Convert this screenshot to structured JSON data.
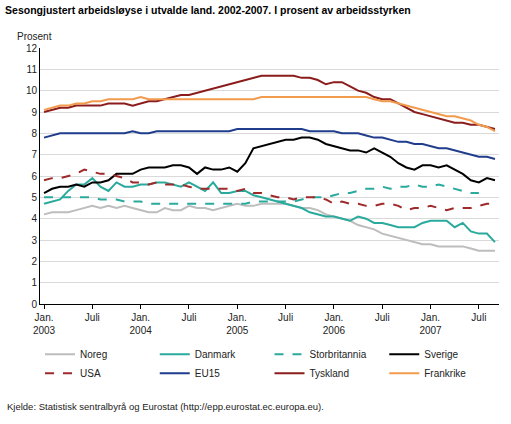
{
  "chart_data": {
    "type": "line",
    "title": "Sesongjustert arbeidsløyse i utvalde land. 2002-2007. I prosent av arbeidsstyrken",
    "y_label": "Prosent",
    "source": "Kjelde: Statistisk sentralbyrå og Eurostat (http://epp.eurostat.ec.europa.eu).",
    "categories": [
      "Jan. 2003",
      null,
      null,
      null,
      null,
      null,
      "Juli",
      null,
      null,
      null,
      null,
      null,
      "Jan. 2004",
      null,
      null,
      null,
      null,
      null,
      "Juli",
      null,
      null,
      null,
      null,
      null,
      "Jan. 2005",
      null,
      null,
      null,
      null,
      null,
      "Juli",
      null,
      null,
      null,
      null,
      null,
      "Jan. 2006",
      null,
      null,
      null,
      null,
      null,
      "Juli",
      null,
      null,
      null,
      null,
      null,
      "Jan. 2007",
      null,
      null,
      null,
      null,
      null,
      "Juli",
      null,
      null
    ],
    "ylim": [
      0,
      12
    ],
    "yticks": [
      0,
      1,
      2,
      3,
      4,
      5,
      6,
      7,
      8,
      9,
      10,
      11,
      12
    ],
    "grid": true,
    "legend": "bottom",
    "series": [
      {
        "name": "Noreg",
        "color": "#bdbdbd",
        "line_style": "solid",
        "values": [
          4.2,
          4.3,
          4.3,
          4.3,
          4.4,
          4.5,
          4.6,
          4.5,
          4.6,
          4.5,
          4.6,
          4.5,
          4.4,
          4.3,
          4.3,
          4.5,
          4.4,
          4.4,
          4.6,
          4.5,
          4.5,
          4.4,
          4.5,
          4.6,
          4.7,
          4.6,
          4.6,
          4.7,
          4.7,
          4.7,
          4.7,
          4.6,
          4.5,
          4.5,
          4.4,
          4.2,
          4.1,
          4.0,
          3.9,
          3.7,
          3.6,
          3.5,
          3.3,
          3.2,
          3.1,
          3.0,
          2.9,
          2.8,
          2.8,
          2.7,
          2.7,
          2.7,
          2.7,
          2.6,
          2.5,
          2.5,
          2.5
        ]
      },
      {
        "name": "Danmark",
        "color": "#2aaa9c",
        "line_style": "solid",
        "values": [
          4.7,
          4.8,
          4.9,
          5.3,
          5.6,
          5.6,
          5.9,
          5.5,
          5.3,
          5.7,
          5.5,
          5.5,
          5.6,
          5.6,
          5.7,
          5.7,
          5.6,
          5.5,
          5.7,
          5.5,
          5.3,
          5.7,
          5.2,
          5.2,
          5.3,
          5.3,
          5.1,
          5.0,
          4.9,
          4.8,
          4.7,
          4.6,
          4.5,
          4.3,
          4.2,
          4.1,
          4.1,
          4.0,
          3.9,
          4.1,
          4.0,
          3.8,
          3.8,
          3.7,
          3.6,
          3.6,
          3.6,
          3.8,
          3.9,
          3.9,
          3.9,
          3.6,
          3.8,
          3.4,
          3.3,
          3.3,
          2.9
        ]
      },
      {
        "name": "Storbritannia",
        "color": "#2aaa9c",
        "line_style": "dashed",
        "values": [
          5.0,
          5.0,
          5.0,
          5.0,
          5.0,
          5.0,
          5.0,
          4.9,
          4.9,
          4.9,
          4.8,
          4.8,
          4.8,
          4.7,
          4.7,
          4.7,
          4.7,
          4.7,
          4.7,
          4.7,
          4.7,
          4.7,
          4.7,
          4.7,
          4.7,
          4.7,
          4.8,
          4.8,
          4.8,
          4.8,
          4.8,
          4.8,
          4.9,
          5.0,
          5.0,
          5.0,
          5.1,
          5.2,
          5.2,
          5.3,
          5.4,
          5.4,
          5.5,
          5.4,
          5.5,
          5.5,
          5.6,
          5.5,
          5.5,
          5.6,
          5.5,
          5.4,
          5.3,
          5.2,
          5.2,
          null,
          null
        ]
      },
      {
        "name": "Sverige",
        "color": "#000000",
        "line_style": "solid",
        "values": [
          5.2,
          5.4,
          5.5,
          5.5,
          5.6,
          5.5,
          5.7,
          5.7,
          5.8,
          6.1,
          6.1,
          6.1,
          6.3,
          6.4,
          6.4,
          6.4,
          6.5,
          6.5,
          6.4,
          6.1,
          6.4,
          6.3,
          6.3,
          6.4,
          6.2,
          6.6,
          7.3,
          7.4,
          7.5,
          7.6,
          7.7,
          7.7,
          7.8,
          7.8,
          7.7,
          7.5,
          7.4,
          7.3,
          7.2,
          7.2,
          7.1,
          7.3,
          7.1,
          6.9,
          6.6,
          6.4,
          6.3,
          6.5,
          6.5,
          6.4,
          6.5,
          6.3,
          6.1,
          5.8,
          5.7,
          5.9,
          5.8
        ]
      },
      {
        "name": "USA",
        "color": "#9e2a2b",
        "line_style": "dashed",
        "values": [
          5.8,
          5.9,
          5.9,
          6.0,
          6.1,
          6.3,
          6.2,
          6.1,
          6.1,
          6.0,
          5.9,
          5.7,
          5.7,
          5.6,
          5.7,
          5.6,
          5.6,
          5.6,
          5.5,
          5.4,
          5.4,
          5.4,
          5.4,
          5.4,
          5.3,
          5.4,
          5.2,
          5.2,
          5.1,
          5.0,
          5.0,
          4.9,
          5.0,
          5.0,
          5.0,
          4.9,
          4.7,
          4.8,
          4.7,
          4.7,
          4.6,
          4.6,
          4.7,
          4.7,
          4.6,
          4.4,
          4.5,
          4.5,
          4.6,
          4.5,
          4.4,
          4.5,
          4.5,
          4.5,
          4.6,
          4.7,
          4.7
        ]
      },
      {
        "name": "EU15",
        "color": "#1f3d8c",
        "line_style": "solid",
        "values": [
          7.8,
          7.9,
          8.0,
          8.0,
          8.0,
          8.0,
          8.0,
          8.0,
          8.0,
          8.0,
          8.0,
          8.1,
          8.0,
          8.0,
          8.1,
          8.1,
          8.1,
          8.1,
          8.1,
          8.1,
          8.1,
          8.1,
          8.1,
          8.1,
          8.2,
          8.2,
          8.2,
          8.2,
          8.2,
          8.2,
          8.2,
          8.2,
          8.2,
          8.1,
          8.1,
          8.1,
          8.1,
          8.0,
          8.0,
          8.0,
          7.9,
          7.8,
          7.8,
          7.7,
          7.6,
          7.6,
          7.5,
          7.5,
          7.4,
          7.3,
          7.3,
          7.2,
          7.1,
          7.0,
          6.9,
          6.9,
          6.8
        ]
      },
      {
        "name": "Tyskland",
        "color": "#8b1c1c",
        "line_style": "solid",
        "values": [
          9.0,
          9.1,
          9.2,
          9.2,
          9.3,
          9.3,
          9.3,
          9.3,
          9.4,
          9.4,
          9.4,
          9.3,
          9.4,
          9.5,
          9.5,
          9.6,
          9.7,
          9.8,
          9.8,
          9.9,
          10.0,
          10.1,
          10.2,
          10.3,
          10.4,
          10.5,
          10.6,
          10.7,
          10.7,
          10.7,
          10.7,
          10.7,
          10.6,
          10.6,
          10.5,
          10.3,
          10.4,
          10.4,
          10.2,
          10.0,
          9.9,
          9.7,
          9.6,
          9.6,
          9.4,
          9.2,
          9.0,
          8.9,
          8.8,
          8.7,
          8.6,
          8.5,
          8.5,
          8.4,
          8.4,
          8.3,
          8.2
        ]
      },
      {
        "name": "Frankrike",
        "color": "#f29b4d",
        "line_style": "solid",
        "values": [
          9.1,
          9.2,
          9.3,
          9.3,
          9.4,
          9.4,
          9.5,
          9.5,
          9.6,
          9.6,
          9.6,
          9.6,
          9.7,
          9.6,
          9.6,
          9.6,
          9.6,
          9.6,
          9.6,
          9.6,
          9.6,
          9.6,
          9.6,
          9.6,
          9.6,
          9.6,
          9.6,
          9.7,
          9.7,
          9.7,
          9.7,
          9.7,
          9.7,
          9.7,
          9.7,
          9.7,
          9.7,
          9.7,
          9.7,
          9.7,
          9.7,
          9.6,
          9.5,
          9.5,
          9.4,
          9.3,
          9.2,
          9.1,
          9.0,
          8.9,
          8.8,
          8.8,
          8.7,
          8.6,
          8.4,
          8.3,
          8.1
        ]
      }
    ]
  }
}
